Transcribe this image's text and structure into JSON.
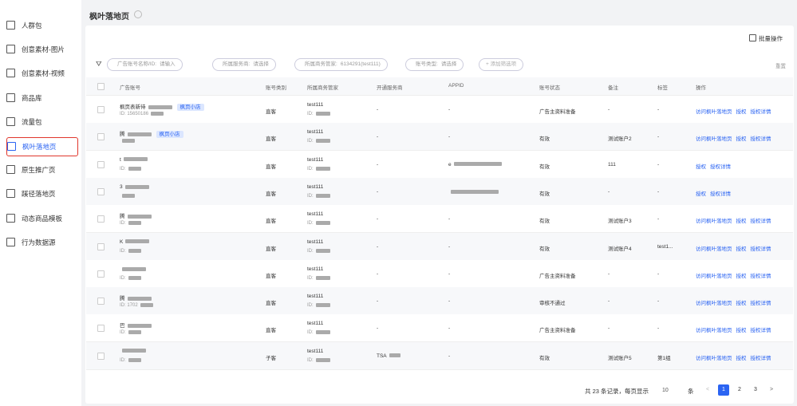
{
  "sidebar": {
    "items": [
      "人群包",
      "创意素材-图片",
      "创意素材-视频",
      "商品库",
      "流量包",
      "枫叶落地页",
      "原生推广页",
      "蹊径落地页",
      "动态商品模板",
      "行为数据源"
    ],
    "active": 5
  },
  "header": {
    "title": "枫叶落地页"
  },
  "toolbar": {
    "batch": "批量操作",
    "reset": "重置",
    "add_filter": "+ 添加筛选项"
  },
  "filters": [
    {
      "label": "广告账号名称/ID:",
      "value": "请输入"
    },
    {
      "label": "所属服务商:",
      "value": "请选择"
    },
    {
      "label": "所属商务管家:",
      "value": "6134291(test111)"
    },
    {
      "label": "账号类型:",
      "value": "请选择"
    }
  ],
  "table": {
    "columns": [
      "广告账号",
      "账号类别",
      "所属商务管家",
      "开通服务商",
      "APPID",
      "账号状态",
      "备注",
      "标签",
      "操作"
    ],
    "rows": [
      {
        "account": "枫页表新待",
        "tag": "枫页小店",
        "account_id": "ID: 15650186",
        "category": "直客",
        "manager": "test111",
        "manager_id": "ID:",
        "provider": "-",
        "appid": "-",
        "status": "广告主资料准备",
        "remark": "-",
        "label": "-",
        "actions": [
          "访问枫叶落地页",
          "授权",
          "授权详情"
        ]
      },
      {
        "account": "腾",
        "tag": "枫页小店",
        "category": "直客",
        "manager": "test111",
        "manager_id": "ID:",
        "provider": "-",
        "appid": "-",
        "status": "有效",
        "remark": "测试账户2",
        "label": "-",
        "actions": [
          "访问枫叶落地页",
          "授权",
          "授权详情"
        ]
      },
      {
        "account": "t",
        "account_id": "ID:",
        "category": "直客",
        "manager": "test111",
        "manager_id": "ID:",
        "provider": "-",
        "appid": "e",
        "status": "有效",
        "remark": "111",
        "label": "-",
        "actions": [
          "授权",
          "授权详情"
        ]
      },
      {
        "account": "3",
        "category": "直客",
        "manager": "test111",
        "manager_id": "ID:",
        "provider": "-",
        "status": "有效",
        "remark": "-",
        "label": "-",
        "actions": [
          "授权",
          "授权详情"
        ]
      },
      {
        "account": "腾",
        "account_id": "ID:",
        "category": "直客",
        "manager": "test111",
        "manager_id": "ID:",
        "provider": "-",
        "appid": "-",
        "status": "有效",
        "remark": "测试账户3",
        "label": "-",
        "actions": [
          "访问枫叶落地页",
          "授权",
          "授权详情"
        ]
      },
      {
        "account": "K",
        "account_id": "ID:",
        "category": "直客",
        "manager": "test111",
        "manager_id": "ID:",
        "provider": "-",
        "appid": "-",
        "status": "有效",
        "remark": "测试账户4",
        "label": "test1...",
        "actions": [
          "访问枫叶落地页",
          "授权",
          "授权详情"
        ]
      },
      {
        "account_id": "ID:",
        "category": "直客",
        "manager": "test111",
        "manager_id": "ID:",
        "provider": "-",
        "appid": "-",
        "status": "广告主资料准备",
        "remark": "-",
        "label": "-",
        "actions": [
          "访问枫叶落地页",
          "授权",
          "授权详情"
        ]
      },
      {
        "account": "腾",
        "account_id": "ID: 1702",
        "category": "直客",
        "manager": "test111",
        "manager_id": "ID:",
        "provider": "-",
        "appid": "-",
        "status": "审核不通过",
        "remark": "-",
        "label": "-",
        "actions": [
          "访问枫叶落地页",
          "授权",
          "授权详情"
        ]
      },
      {
        "account": "巴",
        "account_id": "ID:",
        "category": "直客",
        "manager": "test111",
        "manager_id": "ID:",
        "provider": "-",
        "appid": "-",
        "status": "广告主资料准备",
        "remark": "-",
        "label": "-",
        "actions": [
          "访问枫叶落地页",
          "授权",
          "授权详情"
        ]
      },
      {
        "account_id": "ID:",
        "category": "子客",
        "manager": "test111",
        "manager_id": "ID:",
        "provider": "TSA",
        "appid": "-",
        "status": "有效",
        "remark": "测试账户5",
        "label": "第1组",
        "actions": [
          "访问枫叶落地页",
          "授权",
          "授权详情"
        ]
      }
    ]
  },
  "pagination": {
    "summary": "共 23 条记录，每页显示",
    "page_size": "10",
    "unit": "条",
    "prev": "<",
    "pages": [
      "1",
      "2",
      "3"
    ],
    "next": ">",
    "current": 0
  }
}
